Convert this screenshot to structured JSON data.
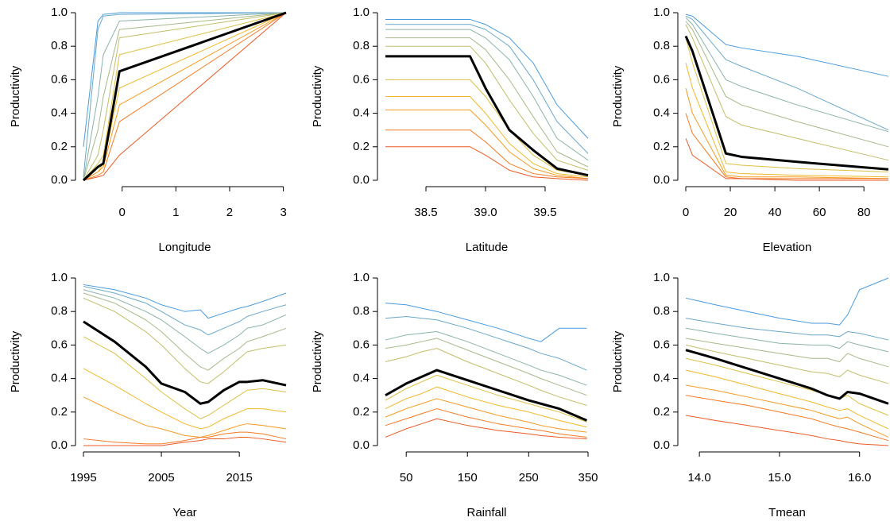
{
  "chart_data": [
    {
      "type": "line",
      "xlabel": "Longitude",
      "ylabel": "Productivity",
      "x": [
        -0.72,
        -0.45,
        -0.35,
        -0.05,
        3.05
      ],
      "xlim": [
        -0.72,
        3.05
      ],
      "xticks": [
        0,
        1,
        2,
        3
      ],
      "ylim": [
        0,
        1
      ],
      "yticks": [
        {
          "value": 0,
          "label": "0.0"
        },
        0.2,
        0.4,
        0.6,
        0.8,
        {
          "value": 1,
          "label": "1.0"
        }
      ],
      "series": [
        {
          "color": "#4a9be0",
          "values": [
            0.2,
            0.95,
            0.99,
            1.0,
            1.0
          ]
        },
        {
          "color": "#6aa8c8",
          "values": [
            0.02,
            0.9,
            0.98,
            0.99,
            1.0
          ]
        },
        {
          "color": "#8bb3a8",
          "values": [
            0,
            0.5,
            0.75,
            0.95,
            1.0
          ]
        },
        {
          "color": "#a6b98a",
          "values": [
            0,
            0.3,
            0.5,
            0.9,
            1.0
          ]
        },
        {
          "color": "#c2bd6a",
          "values": [
            0,
            0.15,
            0.3,
            0.85,
            1.0
          ]
        },
        {
          "color": "#dcbf45",
          "values": [
            0,
            0.1,
            0.15,
            0.75,
            1.0
          ]
        },
        {
          "color": "#f0b828",
          "values": [
            0,
            0.05,
            0.1,
            0.55,
            1.0
          ]
        },
        {
          "color": "#f59a20",
          "values": [
            0,
            0.05,
            0.08,
            0.45,
            1.0
          ]
        },
        {
          "color": "#f47a22",
          "values": [
            0,
            0.03,
            0.05,
            0.35,
            1.0
          ]
        },
        {
          "color": "#ec5a26",
          "values": [
            0,
            0.02,
            0.03,
            0.15,
            1.0
          ]
        },
        {
          "color": "#000000",
          "linewidth": 3,
          "values": [
            0,
            0.08,
            0.1,
            0.65,
            1.0
          ]
        }
      ]
    },
    {
      "type": "line",
      "xlabel": "Latitude",
      "ylabel": "Productivity",
      "x": [
        38.16,
        38.87,
        39.0,
        39.2,
        39.4,
        39.6,
        39.86
      ],
      "xlim": [
        38.16,
        39.86
      ],
      "xticks": [
        38.5,
        {
          "value": 39,
          "label": "39.0"
        },
        39.5
      ],
      "ylim": [
        0,
        1
      ],
      "yticks": [
        {
          "value": 0,
          "label": "0.0"
        },
        0.2,
        0.4,
        0.6,
        0.8,
        {
          "value": 1,
          "label": "1.0"
        }
      ],
      "series": [
        {
          "color": "#4a9be0",
          "values": [
            0.96,
            0.96,
            0.93,
            0.85,
            0.7,
            0.45,
            0.25
          ]
        },
        {
          "color": "#6aa8c8",
          "values": [
            0.93,
            0.93,
            0.9,
            0.8,
            0.6,
            0.35,
            0.16
          ]
        },
        {
          "color": "#8bb3a8",
          "values": [
            0.9,
            0.9,
            0.85,
            0.72,
            0.5,
            0.25,
            0.12
          ]
        },
        {
          "color": "#a6b98a",
          "values": [
            0.85,
            0.85,
            0.78,
            0.6,
            0.38,
            0.17,
            0.08
          ]
        },
        {
          "color": "#c2bd6a",
          "values": [
            0.8,
            0.8,
            0.7,
            0.48,
            0.28,
            0.12,
            0.06
          ]
        },
        {
          "color": "#dcbf45",
          "values": [
            0.6,
            0.6,
            0.5,
            0.3,
            0.15,
            0.06,
            0.03
          ]
        },
        {
          "color": "#f0b828",
          "values": [
            0.5,
            0.5,
            0.4,
            0.22,
            0.1,
            0.04,
            0.02
          ]
        },
        {
          "color": "#f59a20",
          "values": [
            0.42,
            0.42,
            0.33,
            0.17,
            0.07,
            0.03,
            0.01
          ]
        },
        {
          "color": "#f47a22",
          "values": [
            0.3,
            0.3,
            0.23,
            0.1,
            0.04,
            0.02,
            0.01
          ]
        },
        {
          "color": "#ec5a26",
          "values": [
            0.2,
            0.2,
            0.15,
            0.06,
            0.02,
            0.01,
            0.0
          ]
        },
        {
          "color": "#000000",
          "linewidth": 3,
          "values": [
            0.74,
            0.74,
            0.55,
            0.3,
            0.18,
            0.07,
            0.03
          ]
        }
      ]
    },
    {
      "type": "line",
      "xlabel": "Elevation",
      "ylabel": "Productivity",
      "x": [
        0,
        3,
        18,
        25,
        50,
        91
      ],
      "xlim": [
        0,
        91
      ],
      "xticks": [
        0,
        20,
        40,
        60,
        80
      ],
      "ylim": [
        0,
        1
      ],
      "yticks": [
        {
          "value": 0,
          "label": "0.0"
        },
        0.2,
        0.4,
        0.6,
        0.8,
        {
          "value": 1,
          "label": "1.0"
        }
      ],
      "series": [
        {
          "color": "#4a9be0",
          "values": [
            0.99,
            0.98,
            0.81,
            0.79,
            0.74,
            0.62
          ]
        },
        {
          "color": "#6aa8c8",
          "values": [
            0.98,
            0.96,
            0.72,
            0.68,
            0.55,
            0.3
          ]
        },
        {
          "color": "#8bb3a8",
          "values": [
            0.97,
            0.93,
            0.6,
            0.56,
            0.45,
            0.29
          ]
        },
        {
          "color": "#a6b98a",
          "values": [
            0.95,
            0.9,
            0.5,
            0.45,
            0.35,
            0.2
          ]
        },
        {
          "color": "#c2bd6a",
          "values": [
            0.93,
            0.85,
            0.38,
            0.33,
            0.25,
            0.12
          ]
        },
        {
          "color": "#dcbf45",
          "values": [
            0.85,
            0.7,
            0.1,
            0.09,
            0.07,
            0.05
          ]
        },
        {
          "color": "#f0b828",
          "values": [
            0.7,
            0.55,
            0.05,
            0.04,
            0.03,
            0.02
          ]
        },
        {
          "color": "#f59a20",
          "values": [
            0.55,
            0.4,
            0.03,
            0.02,
            0.02,
            0.01
          ]
        },
        {
          "color": "#f47a22",
          "values": [
            0.4,
            0.28,
            0.02,
            0.01,
            0.01,
            0.01
          ]
        },
        {
          "color": "#ec5a26",
          "values": [
            0.25,
            0.15,
            0.01,
            0.01,
            0.0,
            0.0
          ]
        },
        {
          "color": "#000000",
          "linewidth": 3,
          "values": [
            0.86,
            0.77,
            0.16,
            0.14,
            0.11,
            0.065
          ]
        }
      ]
    },
    {
      "type": "line",
      "xlabel": "Year",
      "ylabel": "Productivity",
      "x": [
        1995,
        1999,
        2003,
        2005,
        2008,
        2010,
        2011,
        2013,
        2015,
        2016,
        2018,
        2021
      ],
      "xlim": [
        1995,
        2021
      ],
      "xticks": [
        1995,
        2005,
        2015
      ],
      "ylim": [
        0,
        1
      ],
      "yticks": [
        {
          "value": 0,
          "label": "0.0"
        },
        0.2,
        0.4,
        0.6,
        0.8,
        {
          "value": 1,
          "label": "1.0"
        }
      ],
      "series": [
        {
          "color": "#4a9be0",
          "values": [
            0.96,
            0.93,
            0.88,
            0.84,
            0.8,
            0.81,
            0.76,
            0.79,
            0.82,
            0.83,
            0.86,
            0.91
          ]
        },
        {
          "color": "#6aa8c8",
          "values": [
            0.95,
            0.91,
            0.85,
            0.8,
            0.72,
            0.69,
            0.66,
            0.7,
            0.74,
            0.77,
            0.8,
            0.84
          ]
        },
        {
          "color": "#8bb3a8",
          "values": [
            0.93,
            0.88,
            0.8,
            0.75,
            0.65,
            0.58,
            0.55,
            0.6,
            0.66,
            0.7,
            0.72,
            0.78
          ]
        },
        {
          "color": "#a6b98a",
          "values": [
            0.91,
            0.85,
            0.75,
            0.68,
            0.55,
            0.47,
            0.45,
            0.52,
            0.58,
            0.62,
            0.65,
            0.7
          ]
        },
        {
          "color": "#c2bd6a",
          "values": [
            0.88,
            0.8,
            0.68,
            0.6,
            0.46,
            0.38,
            0.37,
            0.44,
            0.52,
            0.56,
            0.58,
            0.6
          ]
        },
        {
          "color": "#dcbf45",
          "values": [
            0.65,
            0.55,
            0.4,
            0.32,
            0.22,
            0.16,
            0.18,
            0.24,
            0.3,
            0.33,
            0.34,
            0.32
          ]
        },
        {
          "color": "#f0b828",
          "values": [
            0.46,
            0.36,
            0.25,
            0.2,
            0.13,
            0.1,
            0.11,
            0.16,
            0.2,
            0.22,
            0.22,
            0.2
          ]
        },
        {
          "color": "#f59a20",
          "values": [
            0.29,
            0.2,
            0.12,
            0.1,
            0.06,
            0.05,
            0.06,
            0.09,
            0.12,
            0.13,
            0.12,
            0.1
          ]
        },
        {
          "color": "#f47a22",
          "values": [
            0.04,
            0.02,
            0.01,
            0.01,
            0.03,
            0.05,
            0.05,
            0.07,
            0.08,
            0.08,
            0.07,
            0.04
          ]
        },
        {
          "color": "#ec5a26",
          "values": [
            0.0,
            0.0,
            0.0,
            0.0,
            0.02,
            0.03,
            0.04,
            0.04,
            0.05,
            0.05,
            0.04,
            0.02
          ]
        },
        {
          "color": "#000000",
          "linewidth": 3,
          "values": [
            0.74,
            0.62,
            0.47,
            0.37,
            0.32,
            0.25,
            0.26,
            0.33,
            0.38,
            0.38,
            0.39,
            0.36
          ]
        }
      ]
    },
    {
      "type": "line",
      "xlabel": "Rainfall",
      "ylabel": "Productivity",
      "x": [
        16,
        50,
        75,
        100,
        150,
        200,
        250,
        270,
        300,
        345
      ],
      "xlim": [
        16,
        347
      ],
      "xticks": [
        50,
        150,
        250,
        350
      ],
      "ylim": [
        0,
        1
      ],
      "yticks": [
        {
          "value": 0,
          "label": "0.0"
        },
        0.2,
        0.4,
        0.6,
        0.8,
        {
          "value": 1,
          "label": "1.0"
        }
      ],
      "series": [
        {
          "color": "#4a9be0",
          "values": [
            0.85,
            0.84,
            0.82,
            0.8,
            0.75,
            0.7,
            0.64,
            0.62,
            0.7,
            0.7
          ]
        },
        {
          "color": "#6aa8c8",
          "values": [
            0.76,
            0.77,
            0.76,
            0.75,
            0.7,
            0.64,
            0.58,
            0.55,
            0.52,
            0.45
          ]
        },
        {
          "color": "#8bb3a8",
          "values": [
            0.63,
            0.66,
            0.67,
            0.68,
            0.62,
            0.55,
            0.48,
            0.45,
            0.42,
            0.36
          ]
        },
        {
          "color": "#a6b98a",
          "values": [
            0.58,
            0.6,
            0.62,
            0.64,
            0.57,
            0.5,
            0.43,
            0.4,
            0.36,
            0.3
          ]
        },
        {
          "color": "#c2bd6a",
          "values": [
            0.5,
            0.53,
            0.56,
            0.58,
            0.5,
            0.43,
            0.36,
            0.33,
            0.29,
            0.24
          ]
        },
        {
          "color": "#dcbf45",
          "values": [
            0.27,
            0.34,
            0.38,
            0.42,
            0.36,
            0.3,
            0.25,
            0.23,
            0.2,
            0.14
          ]
        },
        {
          "color": "#f0b828",
          "values": [
            0.22,
            0.28,
            0.31,
            0.35,
            0.29,
            0.24,
            0.2,
            0.18,
            0.15,
            0.11
          ]
        },
        {
          "color": "#f59a20",
          "values": [
            0.17,
            0.22,
            0.25,
            0.28,
            0.23,
            0.18,
            0.14,
            0.12,
            0.1,
            0.08
          ]
        },
        {
          "color": "#f47a22",
          "values": [
            0.12,
            0.16,
            0.19,
            0.22,
            0.17,
            0.13,
            0.1,
            0.09,
            0.07,
            0.05
          ]
        },
        {
          "color": "#ec5a26",
          "values": [
            0.05,
            0.1,
            0.13,
            0.16,
            0.12,
            0.09,
            0.07,
            0.06,
            0.05,
            0.04
          ]
        },
        {
          "color": "#000000",
          "linewidth": 3,
          "values": [
            0.3,
            0.37,
            0.41,
            0.45,
            0.39,
            0.33,
            0.27,
            0.25,
            0.22,
            0.15
          ]
        }
      ]
    },
    {
      "type": "line",
      "xlabel": "Tmean",
      "ylabel": "Productivity",
      "x": [
        13.83,
        14.2,
        14.6,
        15.0,
        15.4,
        15.6,
        15.75,
        15.85,
        16.0,
        16.36
      ],
      "xlim": [
        13.83,
        16.36
      ],
      "xticks": [
        {
          "value": 14,
          "label": "14.0"
        },
        {
          "value": 15,
          "label": "15.0"
        },
        {
          "value": 16,
          "label": "16.0"
        }
      ],
      "ylim": [
        0,
        1
      ],
      "yticks": [
        {
          "value": 0,
          "label": "0.0"
        },
        0.2,
        0.4,
        0.6,
        0.8,
        {
          "value": 1,
          "label": "1.0"
        }
      ],
      "series": [
        {
          "color": "#4a9be0",
          "values": [
            0.88,
            0.84,
            0.8,
            0.76,
            0.73,
            0.73,
            0.72,
            0.78,
            0.93,
            1.0
          ]
        },
        {
          "color": "#6aa8c8",
          "values": [
            0.76,
            0.73,
            0.7,
            0.68,
            0.66,
            0.66,
            0.65,
            0.68,
            0.67,
            0.63
          ]
        },
        {
          "color": "#8bb3a8",
          "values": [
            0.7,
            0.67,
            0.64,
            0.61,
            0.6,
            0.6,
            0.58,
            0.62,
            0.6,
            0.56
          ]
        },
        {
          "color": "#a6b98a",
          "values": [
            0.64,
            0.61,
            0.58,
            0.55,
            0.52,
            0.52,
            0.5,
            0.55,
            0.52,
            0.47
          ]
        },
        {
          "color": "#c2bd6a",
          "values": [
            0.6,
            0.56,
            0.52,
            0.48,
            0.44,
            0.43,
            0.41,
            0.45,
            0.42,
            0.37
          ]
        },
        {
          "color": "#dcbf45",
          "values": [
            0.52,
            0.48,
            0.43,
            0.38,
            0.33,
            0.3,
            0.28,
            0.3,
            0.25,
            0.18
          ]
        },
        {
          "color": "#f0b828",
          "values": [
            0.45,
            0.41,
            0.36,
            0.31,
            0.26,
            0.23,
            0.21,
            0.22,
            0.18,
            0.1
          ]
        },
        {
          "color": "#f59a20",
          "values": [
            0.36,
            0.33,
            0.29,
            0.25,
            0.21,
            0.18,
            0.16,
            0.17,
            0.13,
            0.05
          ]
        },
        {
          "color": "#f47a22",
          "values": [
            0.3,
            0.27,
            0.24,
            0.2,
            0.16,
            0.13,
            0.11,
            0.1,
            0.08,
            0.03
          ]
        },
        {
          "color": "#ec5a26",
          "values": [
            0.18,
            0.15,
            0.12,
            0.09,
            0.06,
            0.04,
            0.03,
            0.02,
            0.01,
            0.0
          ]
        },
        {
          "color": "#000000",
          "linewidth": 3,
          "values": [
            0.57,
            0.52,
            0.46,
            0.4,
            0.34,
            0.3,
            0.28,
            0.32,
            0.31,
            0.25
          ]
        }
      ]
    }
  ]
}
